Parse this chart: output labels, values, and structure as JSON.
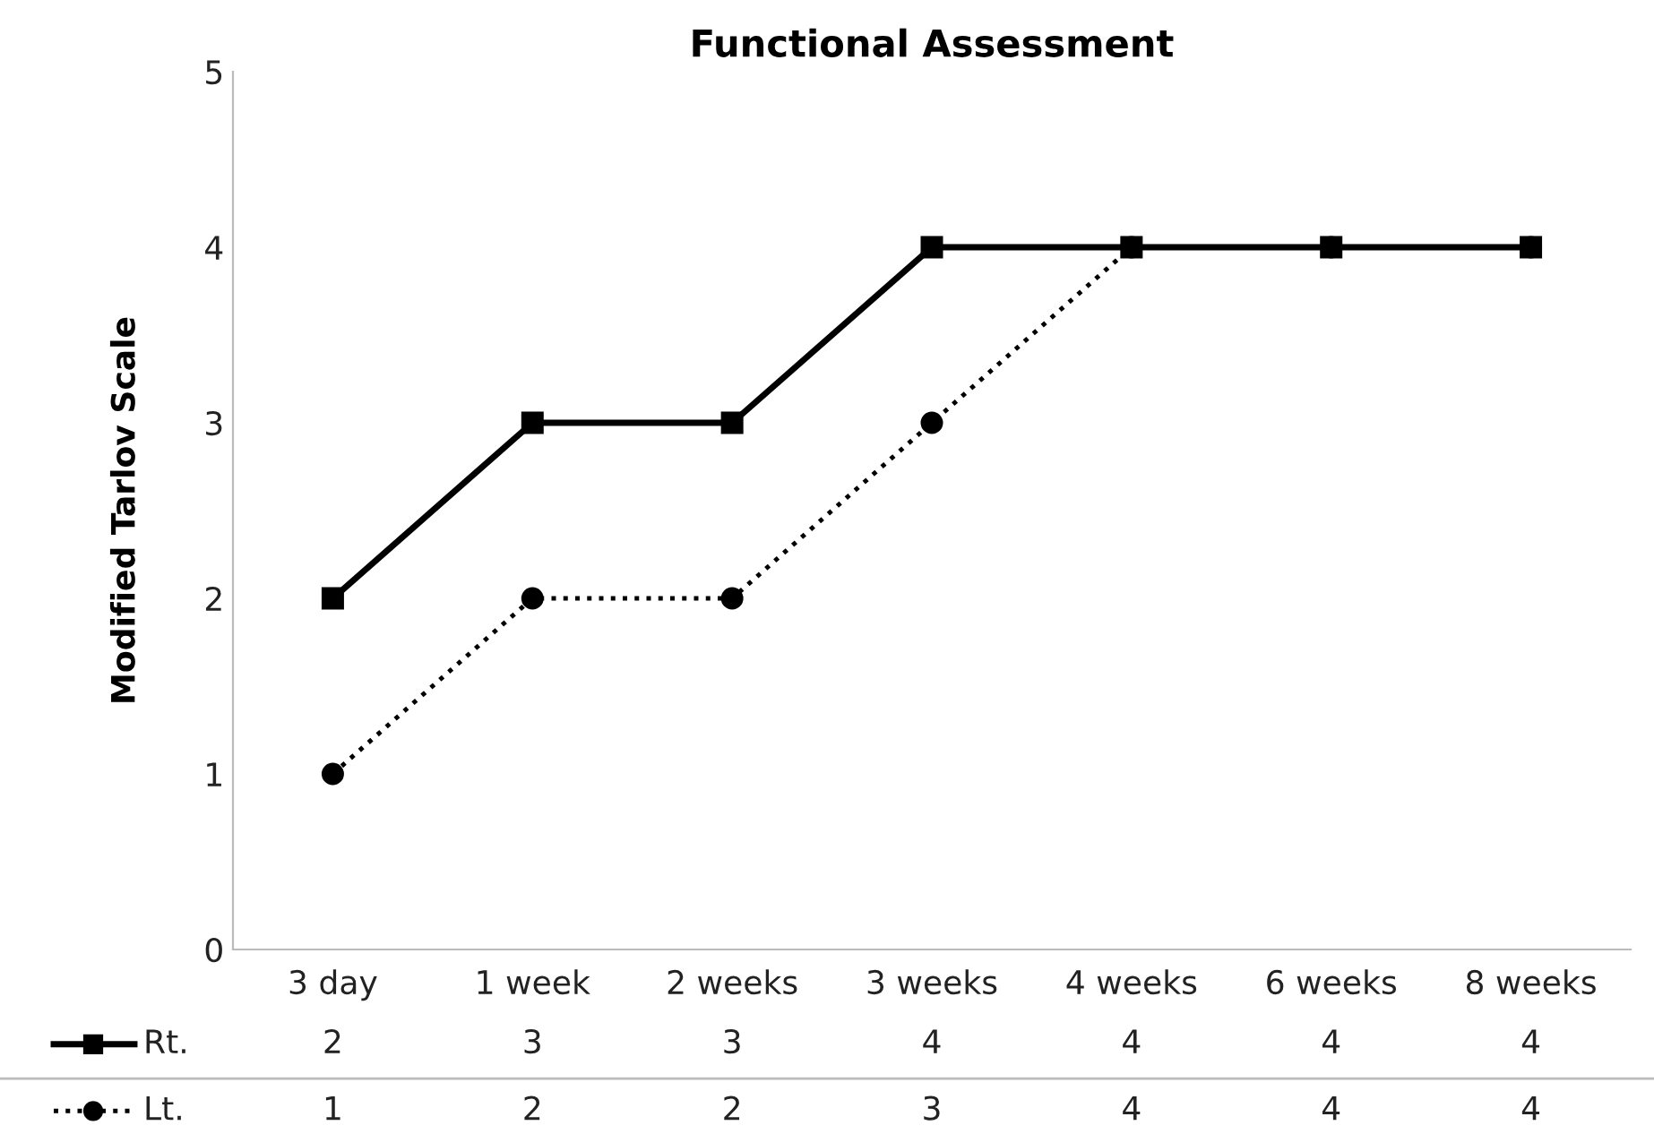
{
  "chart_data": {
    "type": "line",
    "title": "Functional Assessment",
    "ylabel": "Modified Tarlov Scale",
    "categories": [
      "3 day",
      "1 week",
      "2 weeks",
      "3 weeks",
      "4 weeks",
      "6 weeks",
      "8 weeks"
    ],
    "series": [
      {
        "name": "Rt.",
        "color": "#000000",
        "values": [
          2,
          3,
          3,
          4,
          4,
          4,
          4
        ],
        "marker": "square",
        "line_style": "solid"
      },
      {
        "name": "Lt.",
        "color": "#000000",
        "values": [
          1,
          2,
          2,
          3,
          4,
          4,
          4
        ],
        "marker": "circle",
        "line_style": "dotted"
      }
    ],
    "ylim": [
      0,
      5
    ],
    "yticks": [
      0,
      1,
      2,
      3,
      4,
      5
    ],
    "grid": false,
    "legend": "bottom",
    "data_labels": true
  }
}
